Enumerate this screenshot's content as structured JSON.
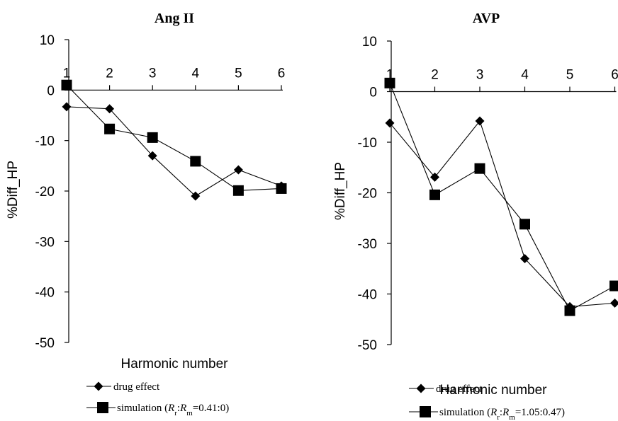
{
  "chart_data": [
    {
      "type": "line",
      "title": "Ang II",
      "xlabel": "Harmonic number",
      "ylabel": "%Diff_HP",
      "x": [
        1,
        2,
        3,
        4,
        5,
        6
      ],
      "ylim": [
        -50,
        10
      ],
      "yticks": [
        10,
        0,
        -10,
        -20,
        -30,
        -40,
        -50
      ],
      "series": [
        {
          "name": "drug effect",
          "marker": "diamond",
          "values": [
            -3.3,
            -3.7,
            -13.0,
            -21.0,
            -15.8,
            -19.0
          ]
        },
        {
          "name": "simulation",
          "marker": "square",
          "values": [
            1.0,
            -7.7,
            -9.4,
            -14.1,
            -19.9,
            -19.5
          ]
        }
      ],
      "legend": {
        "drug": "drug effect",
        "sim_prefix": "simulation (",
        "sim_r1": "R",
        "sim_r1_sub": "r",
        "sim_colon": ":",
        "sim_r2": "R",
        "sim_r2_sub": "m",
        "sim_suffix": "=0.41:0)"
      }
    },
    {
      "type": "line",
      "title": "AVP",
      "xlabel": "Harmonic number",
      "ylabel": "%Diff_HP",
      "x": [
        1,
        2,
        3,
        4,
        5,
        6
      ],
      "ylim": [
        -50,
        10
      ],
      "yticks": [
        10,
        0,
        -10,
        -20,
        -30,
        -40,
        -50
      ],
      "series": [
        {
          "name": "drug effect",
          "marker": "diamond",
          "values": [
            -6.2,
            -16.9,
            -5.8,
            -33.0,
            -42.5,
            -41.8
          ]
        },
        {
          "name": "simulation",
          "marker": "square",
          "values": [
            1.7,
            -20.4,
            -15.2,
            -26.2,
            -43.3,
            -38.4
          ]
        }
      ],
      "legend": {
        "drug": "drug effect",
        "sim_prefix": "simulation (",
        "sim_r1": "R",
        "sim_r1_sub": "r",
        "sim_colon": ":",
        "sim_r2": "R",
        "sim_r2_sub": "m",
        "sim_suffix": "=1.05:0.47)"
      }
    }
  ]
}
